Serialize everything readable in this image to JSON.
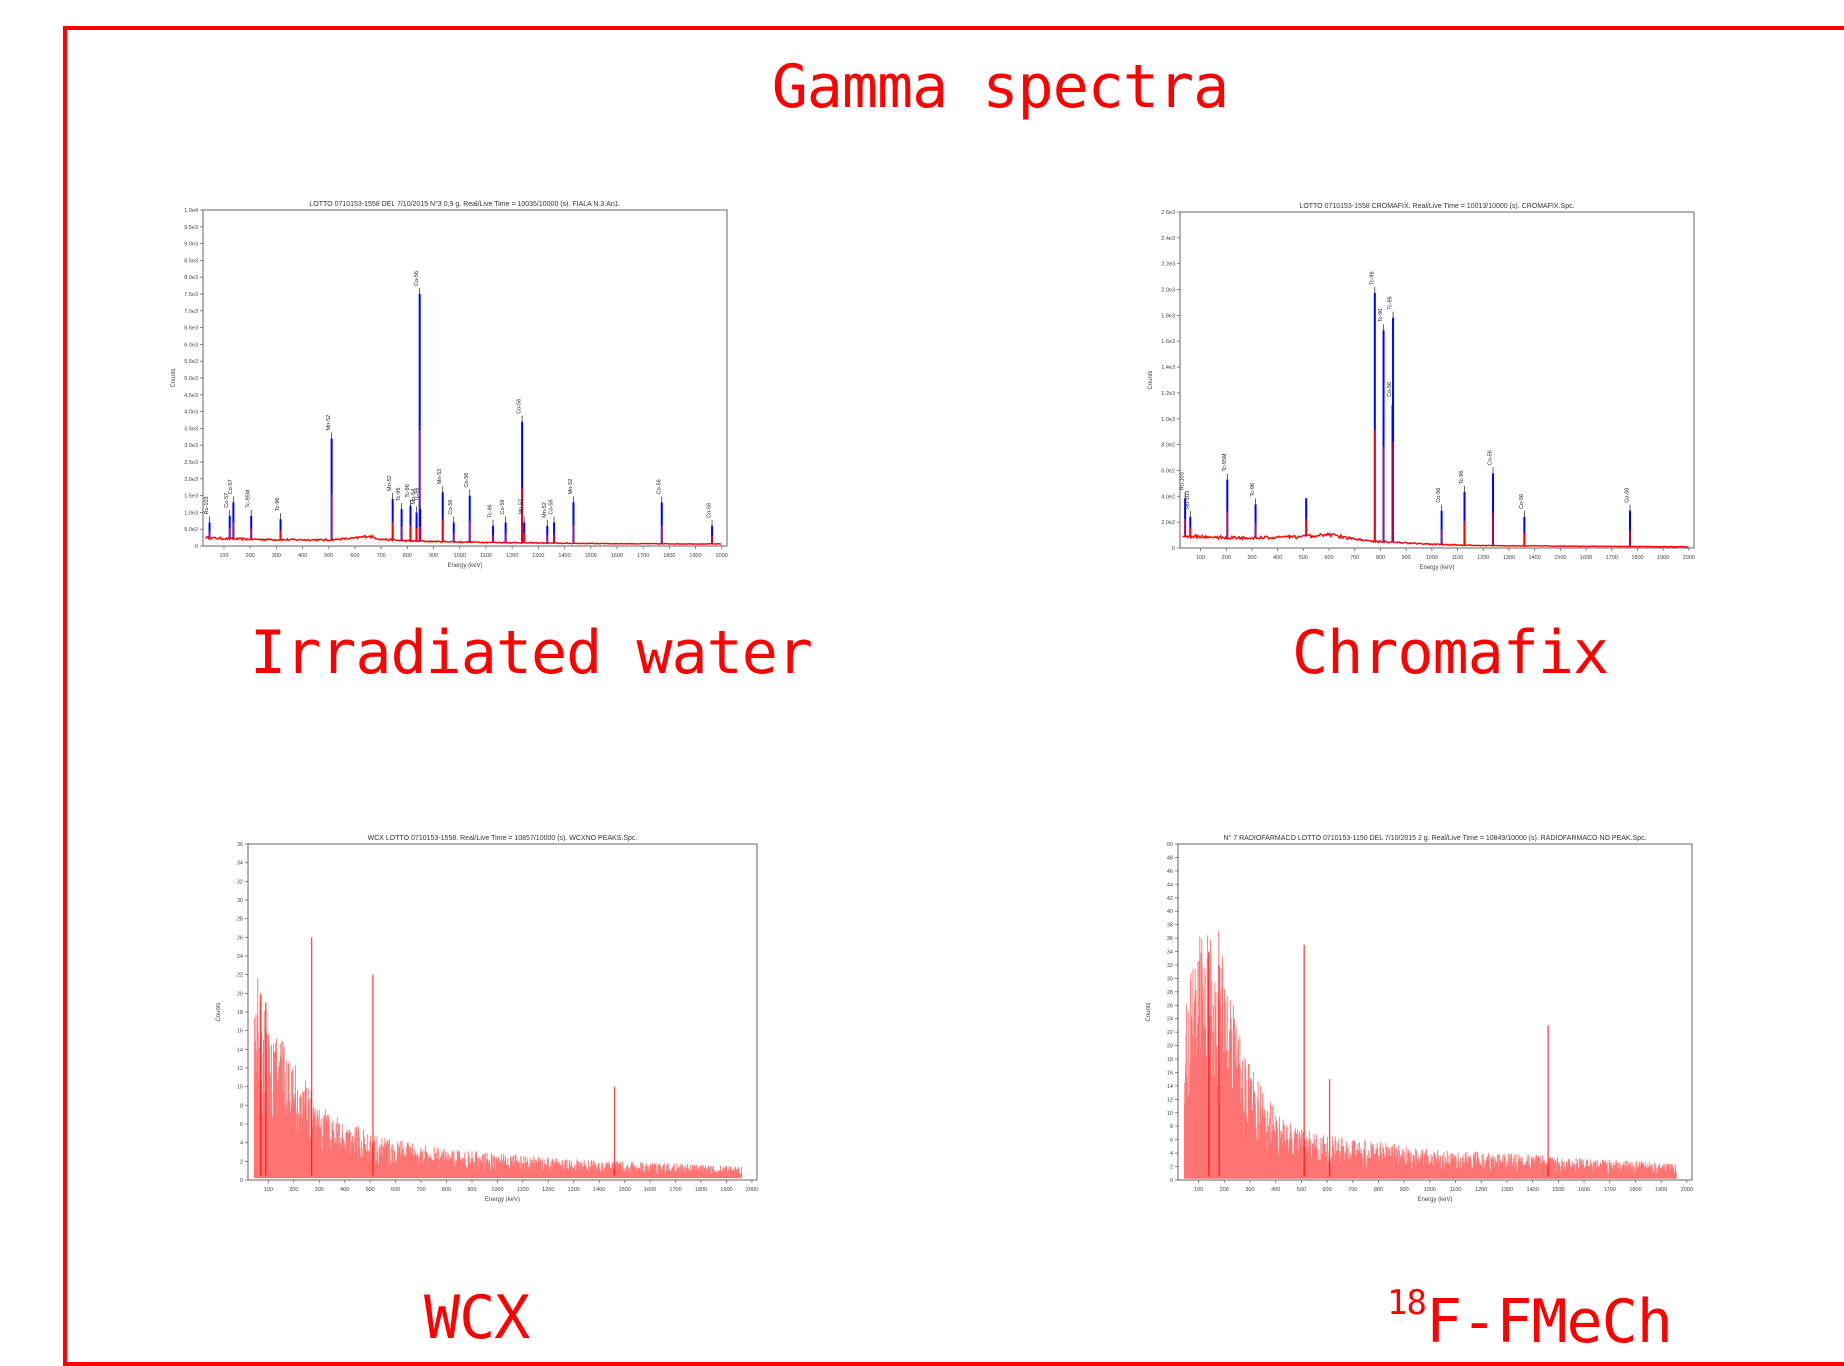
{
  "page": {
    "title": "Gamma spectra",
    "colors": {
      "frame": "#ff0000",
      "text": "#ff0000",
      "trace": "#ff0000",
      "peak": "#0000ff"
    }
  },
  "chart_data": [
    {
      "id": "irradiated",
      "type": "line",
      "caption": "Irradiated water",
      "title": "LOTTO 0710153-1558 DEL 7/10/2015 N°3 0,9 g. Real/Live Time = 10035/10000 (s). FIALA N.3.An1.",
      "xlabel": "Energy (keV)",
      "ylabel": "Counts",
      "xlim": [
        20,
        2020
      ],
      "ylim": [
        0,
        10000
      ],
      "xticks": [
        "100",
        "200",
        "300",
        "400",
        "500",
        "600",
        "700",
        "800",
        "900",
        "1000",
        "1100",
        "1200",
        "1300",
        "1400",
        "1500",
        "1600",
        "1700",
        "1800",
        "1900",
        "2000"
      ],
      "yticks": [
        "0",
        "5.0e2",
        "1.0e3",
        "1.5e3",
        "2.0e3",
        "2.5e3",
        "3.0e3",
        "3.5e3",
        "4.0e3",
        "4.5e3",
        "5.0e3",
        "5.5e3",
        "6.0e3",
        "6.5e3",
        "7.0e3",
        "7.5e3",
        "8.0e3",
        "8.5e3",
        "9.0e3",
        "9.5e3",
        "1.0e4"
      ],
      "baseline": [
        [
          20,
          250
        ],
        [
          100,
          220
        ],
        [
          200,
          200
        ],
        [
          300,
          190
        ],
        [
          500,
          180
        ],
        [
          600,
          230
        ],
        [
          650,
          300
        ],
        [
          700,
          200
        ],
        [
          800,
          150
        ],
        [
          1000,
          120
        ],
        [
          1200,
          100
        ],
        [
          1400,
          80
        ],
        [
          1600,
          70
        ],
        [
          2000,
          60
        ]
      ],
      "peaks": [
        {
          "x": 45,
          "y": 700,
          "label": "Ru-103"
        },
        {
          "x": 122,
          "y": 900,
          "label": "Co-57"
        },
        {
          "x": 136,
          "y": 1300,
          "label": "Co-57"
        },
        {
          "x": 204,
          "y": 900,
          "label": "Tc-95M"
        },
        {
          "x": 316,
          "y": 800,
          "label": "Tc-96"
        },
        {
          "x": 511,
          "y": 3200,
          "label": "Mn-52"
        },
        {
          "x": 744,
          "y": 1400,
          "label": "Mn-52"
        },
        {
          "x": 778,
          "y": 1100,
          "label": "Tc-96"
        },
        {
          "x": 812,
          "y": 1200,
          "label": "Tc-96"
        },
        {
          "x": 835,
          "y": 1000,
          "label": "Mn-54"
        },
        {
          "x": 847,
          "y": 7500,
          "label": "Co-56"
        },
        {
          "x": 849,
          "y": 1100,
          "label": "Tc-96"
        },
        {
          "x": 935,
          "y": 1600,
          "label": "Mn-52"
        },
        {
          "x": 977,
          "y": 700,
          "label": "Co-56"
        },
        {
          "x": 1038,
          "y": 1500,
          "label": "Co-56"
        },
        {
          "x": 1127,
          "y": 600,
          "label": "Tc-96"
        },
        {
          "x": 1175,
          "y": 700,
          "label": "Co-56"
        },
        {
          "x": 1238,
          "y": 3700,
          "label": "Co-56"
        },
        {
          "x": 1246,
          "y": 700,
          "label": "Mn-52"
        },
        {
          "x": 1334,
          "y": 600,
          "label": "Mn-52"
        },
        {
          "x": 1360,
          "y": 700,
          "label": "Co-56"
        },
        {
          "x": 1434,
          "y": 1300,
          "label": "Mn-52"
        },
        {
          "x": 1771,
          "y": 1300,
          "label": "Co-56"
        },
        {
          "x": 1963,
          "y": 600,
          "label": "Co-56"
        }
      ]
    },
    {
      "id": "chromafix",
      "type": "line",
      "caption": "Chromafix",
      "title": "LOTTO 0710153-1558 CROMAFIX. Real/Live Time = 10013/10000 (s). CROMAFIX.Spc.",
      "xlabel": "Energy (keV)",
      "ylabel": "Counts",
      "xlim": [
        20,
        2020
      ],
      "ylim": [
        0,
        2700
      ],
      "xticks": [
        "100",
        "200",
        "300",
        "400",
        "500",
        "600",
        "700",
        "800",
        "900",
        "1000",
        "1100",
        "1200",
        "1300",
        "1400",
        "1500",
        "1600",
        "1700",
        "1800",
        "1900",
        "2000"
      ],
      "yticks": [
        "0",
        "2.0e2",
        "4.0e2",
        "6.0e2",
        "8.0e2",
        "1.0e3",
        "1.2e3",
        "1.4e3",
        "1.6e3",
        "1.8e3",
        "2.0e3",
        "2.2e3",
        "2.4e3",
        "2.6e3"
      ],
      "baseline": [
        [
          20,
          100
        ],
        [
          100,
          90
        ],
        [
          300,
          80
        ],
        [
          500,
          90
        ],
        [
          600,
          110
        ],
        [
          700,
          70
        ],
        [
          800,
          50
        ],
        [
          1000,
          30
        ],
        [
          1200,
          20
        ],
        [
          1500,
          15
        ],
        [
          2000,
          10
        ]
      ],
      "peaks": [
        {
          "x": 40,
          "y": 400,
          "label": "Ru-103"
        },
        {
          "x": 60,
          "y": 250,
          "label": "Ru-103"
        },
        {
          "x": 204,
          "y": 550,
          "label": "Tc-95M"
        },
        {
          "x": 314,
          "y": 350,
          "label": "Tc-96"
        },
        {
          "x": 511,
          "y": 400,
          "label": ""
        },
        {
          "x": 778,
          "y": 2050,
          "label": "Tc-96"
        },
        {
          "x": 812,
          "y": 1750,
          "label": "Tc-96"
        },
        {
          "x": 847,
          "y": 1150,
          "label": "Co-56"
        },
        {
          "x": 849,
          "y": 1850,
          "label": "Tc-96"
        },
        {
          "x": 1038,
          "y": 300,
          "label": "Co-56"
        },
        {
          "x": 1127,
          "y": 450,
          "label": "Tc-96"
        },
        {
          "x": 1238,
          "y": 600,
          "label": "Co-56"
        },
        {
          "x": 1360,
          "y": 250,
          "label": "Co-56"
        },
        {
          "x": 1771,
          "y": 300,
          "label": "Co-56"
        }
      ]
    },
    {
      "id": "wcx",
      "type": "line",
      "caption": "WCX",
      "title": "WCX LOTTO 0710153-1558. Real/Live Time = 10857/10000 (s). WCXNO PEAKS.Spc.",
      "xlabel": "Energy (keV)",
      "ylabel": "Counts",
      "xlim": [
        20,
        2020
      ],
      "ylim": [
        0,
        36
      ],
      "xticks": [
        "100",
        "200",
        "300",
        "400",
        "500",
        "600",
        "700",
        "800",
        "900",
        "1000",
        "1100",
        "1200",
        "1300",
        "1400",
        "1500",
        "1600",
        "1700",
        "1800",
        "1900",
        "2000"
      ],
      "yticks": [
        "0",
        "2",
        "4",
        "6",
        "8",
        "10",
        "12",
        "14",
        "16",
        "18",
        "20",
        "22",
        "24",
        "26",
        "28",
        "30",
        "32",
        "34",
        "36"
      ],
      "envelope": [
        [
          30,
          10
        ],
        [
          60,
          12
        ],
        [
          100,
          9
        ],
        [
          150,
          8
        ],
        [
          200,
          7
        ],
        [
          250,
          5.5
        ],
        [
          300,
          4.5
        ],
        [
          350,
          3.8
        ],
        [
          400,
          3.3
        ],
        [
          500,
          2.8
        ],
        [
          600,
          2.3
        ],
        [
          700,
          2
        ],
        [
          800,
          1.8
        ],
        [
          1000,
          1.5
        ],
        [
          1200,
          1.3
        ],
        [
          1400,
          1.1
        ],
        [
          1600,
          1
        ],
        [
          1800,
          0.9
        ],
        [
          1950,
          0.8
        ]
      ],
      "spikes": [
        {
          "x": 70,
          "y": 20
        },
        {
          "x": 90,
          "y": 19
        },
        {
          "x": 270,
          "y": 26
        },
        {
          "x": 511,
          "y": 22
        },
        {
          "x": 1460,
          "y": 10
        }
      ]
    },
    {
      "id": "fmech",
      "type": "line",
      "caption": "18F-FMeCh",
      "caption_sup": "18",
      "caption_main": "F-FMeCh",
      "title": "N° 7 RADIOFARMACO LOTTO 0710153-1150 DEL 7/10/2015 2 g. Real/Live Time = 10849/10000 (s). RADIOFARMACO NO PEAK.Spc.",
      "xlabel": "Energy (keV)",
      "ylabel": "Counts",
      "xlim": [
        20,
        2020
      ],
      "ylim": [
        0,
        50
      ],
      "xticks": [
        "100",
        "200",
        "300",
        "400",
        "500",
        "600",
        "700",
        "800",
        "900",
        "1000",
        "1100",
        "1200",
        "1300",
        "1400",
        "1500",
        "1600",
        "1700",
        "1800",
        "1900",
        "2000"
      ],
      "yticks": [
        "0",
        "2",
        "4",
        "6",
        "8",
        "10",
        "12",
        "14",
        "16",
        "18",
        "20",
        "22",
        "24",
        "26",
        "28",
        "30",
        "32",
        "34",
        "36",
        "38",
        "40",
        "42",
        "44",
        "46",
        "48",
        "50"
      ],
      "envelope": [
        [
          30,
          14
        ],
        [
          60,
          15
        ],
        [
          100,
          20
        ],
        [
          140,
          22
        ],
        [
          180,
          20
        ],
        [
          220,
          15
        ],
        [
          280,
          10
        ],
        [
          350,
          7
        ],
        [
          420,
          5
        ],
        [
          500,
          4
        ],
        [
          600,
          3.5
        ],
        [
          800,
          3
        ],
        [
          1000,
          2.5
        ],
        [
          1200,
          2.2
        ],
        [
          1400,
          2
        ],
        [
          1600,
          1.7
        ],
        [
          1800,
          1.5
        ],
        [
          1950,
          1.3
        ]
      ],
      "spikes": [
        {
          "x": 140,
          "y": 34
        },
        {
          "x": 180,
          "y": 32
        },
        {
          "x": 511,
          "y": 35
        },
        {
          "x": 610,
          "y": 15
        },
        {
          "x": 1460,
          "y": 23
        }
      ]
    }
  ]
}
